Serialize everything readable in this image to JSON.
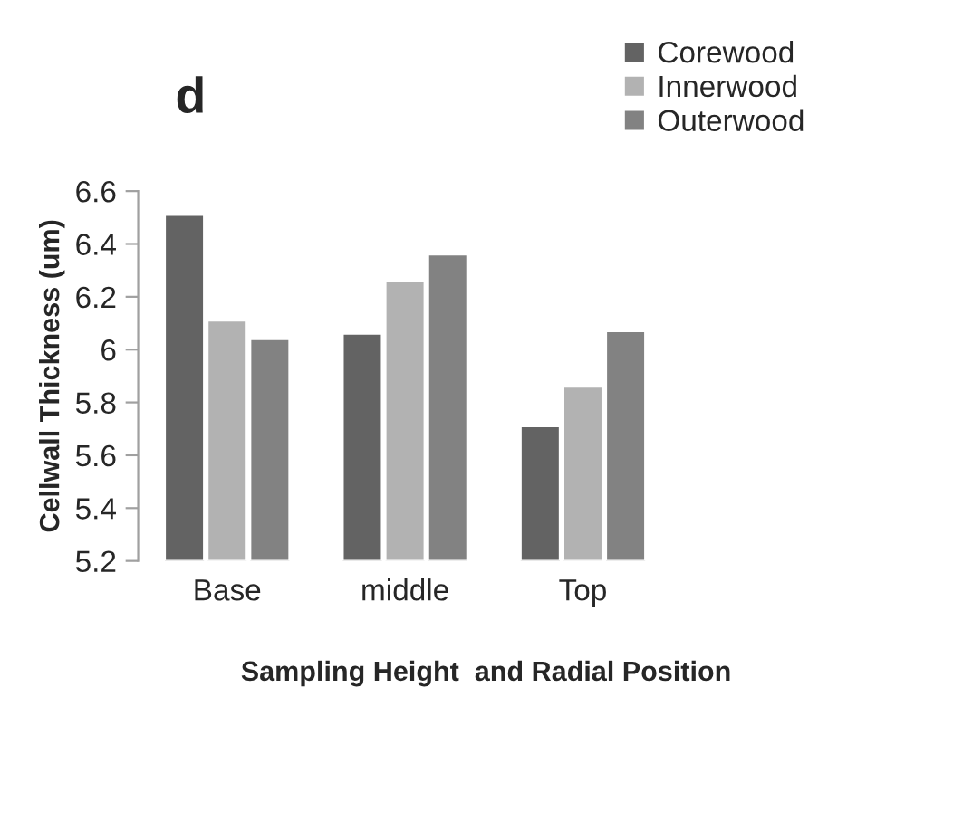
{
  "chart_data": {
    "type": "bar",
    "title": "d",
    "xlabel": "Sampling Height  and Radial Position",
    "ylabel": "Cellwall Thickness (um)",
    "categories": [
      "Base",
      "middle",
      "Top"
    ],
    "series": [
      {
        "name": "Corewood",
        "color": "#636363",
        "values": [
          6.51,
          6.06,
          5.71
        ]
      },
      {
        "name": "Innerwood",
        "color": "#b2b2b2",
        "values": [
          6.11,
          6.26,
          5.86
        ]
      },
      {
        "name": "Outerwood",
        "color": "#828282",
        "values": [
          6.04,
          6.36,
          6.07
        ]
      }
    ],
    "ylim": [
      5.2,
      6.6
    ],
    "yticks": [
      5.2,
      5.4,
      5.6,
      5.8,
      {
        "value": 6,
        "label": "6"
      },
      6.2,
      6.4,
      6.6
    ],
    "grid": false,
    "legend": "top right"
  }
}
